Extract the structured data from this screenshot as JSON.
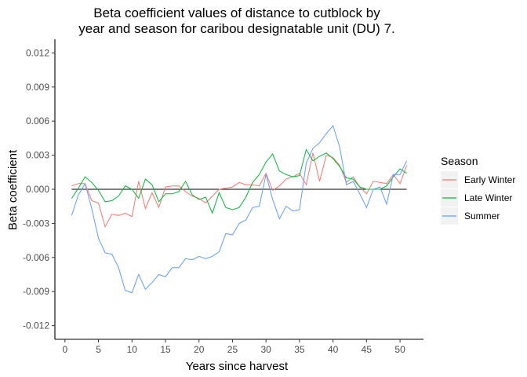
{
  "chart_data": {
    "type": "line",
    "title_line1": "Beta coefficient values of distance to cutblock by",
    "title_line2": "year and season for caribou designatable unit (DU) 7.",
    "xlabel": "Years since harvest",
    "ylabel": "Beta coefficient",
    "xlim": [
      -1.5,
      53.5
    ],
    "ylim": [
      -0.0132,
      0.0132
    ],
    "xticks": [
      0,
      5,
      10,
      15,
      20,
      25,
      30,
      35,
      40,
      45,
      50
    ],
    "yticks": [
      -0.012,
      -0.009,
      -0.006,
      -0.003,
      0.0,
      0.003,
      0.006,
      0.009,
      0.012
    ],
    "ytick_labels": [
      "-0.012",
      "-0.009",
      "-0.006",
      "-0.003",
      "0.000",
      "0.003",
      "0.006",
      "0.009",
      "0.012"
    ],
    "reference_line": {
      "y": 0,
      "x_range": [
        1,
        51
      ],
      "color": "#000000"
    },
    "grid": false,
    "legend": {
      "title": "Season",
      "position": "right"
    },
    "x": [
      1,
      2,
      3,
      4,
      5,
      6,
      7,
      8,
      9,
      10,
      11,
      12,
      13,
      14,
      15,
      16,
      17,
      18,
      19,
      20,
      21,
      22,
      23,
      24,
      25,
      26,
      27,
      28,
      29,
      30,
      31,
      32,
      33,
      34,
      35,
      36,
      37,
      38,
      39,
      40,
      41,
      42,
      43,
      44,
      45,
      46,
      47,
      48,
      49,
      50,
      51
    ],
    "series": [
      {
        "name": "Early Winter",
        "color": "#F8766D",
        "values": [
          0.0003,
          0.0005,
          0.0005,
          -0.001,
          -0.0012,
          -0.0033,
          -0.0022,
          -0.0023,
          -0.0021,
          -0.0024,
          0.0007,
          -0.0017,
          -0.0003,
          -0.0016,
          0.0002,
          0.0003,
          0.0003,
          -0.0002,
          -0.0006,
          -0.0008,
          -0.0012,
          -0.0006,
          0.0,
          0.0001,
          0.0002,
          0.0006,
          0.0004,
          0.0004,
          0.0003,
          0.0014,
          -0.0001,
          0.0003,
          0.0009,
          0.0011,
          0.0014,
          0.0004,
          0.0032,
          0.0007,
          0.003,
          0.0028,
          0.0021,
          0.0006,
          0.0011,
          0.0002,
          -0.0004,
          0.0007,
          0.0006,
          0.0005,
          0.0013,
          0.0005,
          0.0021
        ]
      },
      {
        "name": "Late Winter",
        "color": "#00BA38",
        "values": [
          -0.0008,
          0.0001,
          0.0011,
          0.0006,
          -0.0001,
          -0.0011,
          -0.001,
          -0.0006,
          0.0003,
          0.0,
          -0.0008,
          0.0009,
          0.0004,
          -0.0011,
          -0.0004,
          -0.0004,
          -0.0002,
          0.0007,
          -0.0005,
          -0.0009,
          -0.0007,
          -0.0021,
          -0.0003,
          -0.0016,
          -0.0018,
          -0.0016,
          -0.0007,
          0.0006,
          0.0013,
          0.0024,
          0.0031,
          0.0016,
          0.0013,
          0.0011,
          0.0012,
          0.0035,
          0.0025,
          0.0029,
          0.0032,
          0.0027,
          0.002,
          0.001,
          0.0009,
          0.0002,
          0.0,
          0.0,
          0.0,
          0.0003,
          0.0011,
          0.0018,
          0.0014
        ]
      },
      {
        "name": "Summer",
        "color": "#619CFF",
        "values": [
          -0.0023,
          -0.0005,
          0.0005,
          -0.0017,
          -0.0043,
          -0.0056,
          -0.0057,
          -0.0069,
          -0.0089,
          -0.0091,
          -0.0075,
          -0.0088,
          -0.0082,
          -0.0075,
          -0.0077,
          -0.0069,
          -0.0069,
          -0.0061,
          -0.0062,
          -0.0059,
          -0.0061,
          -0.0059,
          -0.0055,
          -0.0039,
          -0.004,
          -0.003,
          -0.0027,
          -0.0016,
          -0.0015,
          0.0013,
          -0.0009,
          -0.0026,
          -0.0015,
          -0.0019,
          -0.0018,
          0.0023,
          0.0036,
          0.0041,
          0.0049,
          0.0056,
          0.0037,
          0.0004,
          0.0007,
          -0.0004,
          -0.0016,
          0.0,
          0.0002,
          -0.0013,
          0.0013,
          0.0013,
          0.0025
        ]
      }
    ]
  }
}
